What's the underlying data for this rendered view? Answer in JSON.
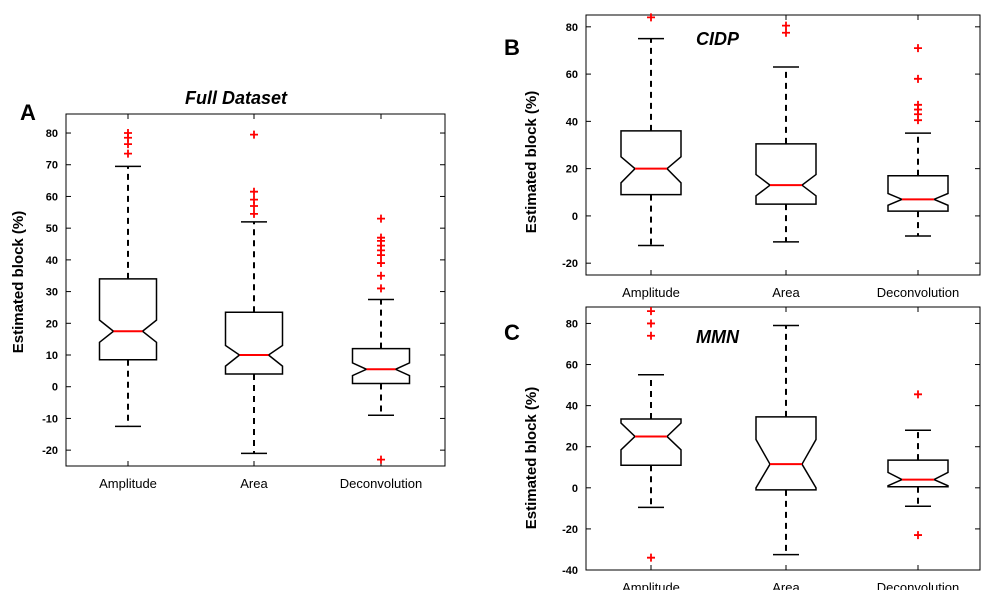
{
  "colors": {
    "box": "#000000",
    "median": "#ff0000",
    "outlier": "#ff0000"
  },
  "chart_data": [
    {
      "panel": "A",
      "type": "boxplot",
      "title": "Full Dataset",
      "title_position": "above",
      "ylabel": "Estimated block (%)",
      "xlabel": "",
      "notched": true,
      "ylim": [
        -25,
        86
      ],
      "yticks": [
        -20,
        -10,
        0,
        10,
        20,
        30,
        40,
        50,
        60,
        70,
        80
      ],
      "categories": [
        "Amplitude",
        "Area",
        "Deconvolution"
      ],
      "boxes": [
        {
          "category": "Amplitude",
          "whisker_low": -12.5,
          "q1": 8.5,
          "notch_low": 14,
          "median": 17.5,
          "notch_high": 21,
          "q3": 34,
          "whisker_high": 69.5,
          "outliers": [
            73.5,
            76.5,
            78.5,
            80
          ]
        },
        {
          "category": "Area",
          "whisker_low": -21,
          "q1": 4,
          "notch_low": 6.5,
          "median": 10,
          "notch_high": 13,
          "q3": 23.5,
          "whisker_high": 52,
          "outliers": [
            54.5,
            57,
            59,
            61.5,
            79.5
          ]
        },
        {
          "category": "Deconvolution",
          "whisker_low": -9,
          "q1": 1,
          "notch_low": 3.5,
          "median": 5.5,
          "notch_high": 7.5,
          "q3": 12,
          "whisker_high": 27.5,
          "outliers": [
            -23,
            31,
            35,
            39,
            41.5,
            43,
            44.5,
            46,
            47,
            53
          ]
        }
      ]
    },
    {
      "panel": "B",
      "type": "boxplot",
      "title": "CIDP",
      "title_position": "inside",
      "ylabel": "Estimated block (%)",
      "xlabel": "",
      "notched": true,
      "ylim": [
        -25,
        85
      ],
      "yticks": [
        -20,
        0,
        20,
        40,
        60,
        80
      ],
      "categories": [
        "Amplitude",
        "Area",
        "Deconvolution"
      ],
      "boxes": [
        {
          "category": "Amplitude",
          "whisker_low": -12.5,
          "q1": 9,
          "notch_low": 14,
          "median": 20,
          "notch_high": 25,
          "q3": 36,
          "whisker_high": 75,
          "outliers": [
            84
          ]
        },
        {
          "category": "Area",
          "whisker_low": -11,
          "q1": 5,
          "notch_low": 8.5,
          "median": 13,
          "notch_high": 17.5,
          "q3": 30.5,
          "whisker_high": 63,
          "outliers": [
            77.5,
            80.5
          ]
        },
        {
          "category": "Deconvolution",
          "whisker_low": -8.5,
          "q1": 2,
          "notch_low": 4.5,
          "median": 7,
          "notch_high": 9.5,
          "q3": 17,
          "whisker_high": 35,
          "outliers": [
            40.5,
            43,
            45,
            47,
            58,
            71
          ]
        }
      ]
    },
    {
      "panel": "C",
      "type": "boxplot",
      "title": "MMN",
      "title_position": "inside",
      "ylabel": "Estimated block (%)",
      "xlabel": "",
      "notched": true,
      "ylim": [
        -40,
        88
      ],
      "yticks": [
        -40,
        -20,
        0,
        20,
        40,
        60,
        80
      ],
      "categories": [
        "Amplitude",
        "Area",
        "Deconvolution"
      ],
      "boxes": [
        {
          "category": "Amplitude",
          "whisker_low": -9.5,
          "q1": 11,
          "notch_low": 18.5,
          "median": 25,
          "notch_high": 31.5,
          "q3": 33.5,
          "whisker_high": 55,
          "outliers": [
            -34,
            74,
            80,
            86
          ]
        },
        {
          "category": "Area",
          "whisker_low": -32.5,
          "q1": -1,
          "notch_low": 0,
          "median": 11.5,
          "notch_high": 23.5,
          "q3": 34.5,
          "whisker_high": 79,
          "outliers": []
        },
        {
          "category": "Deconvolution",
          "whisker_low": -9,
          "q1": 0.5,
          "notch_low": 1,
          "median": 4,
          "notch_high": 7.5,
          "q3": 13.5,
          "whisker_high": 28,
          "outliers": [
            -23,
            45.5
          ]
        }
      ]
    }
  ]
}
